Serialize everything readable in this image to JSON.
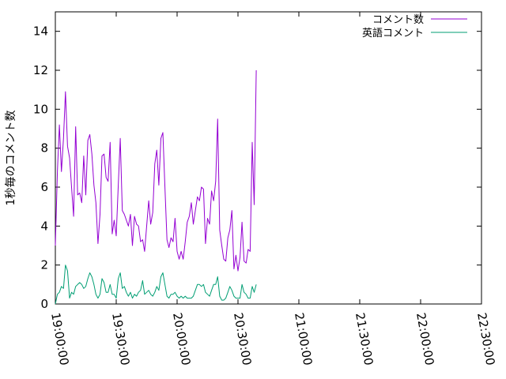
{
  "chart_data": {
    "type": "line",
    "title": "",
    "xlabel": "",
    "ylabel": "1秒毎のコメント数",
    "xlim": [
      "19:00:00",
      "22:30:00"
    ],
    "ylim": [
      0,
      15
    ],
    "x_ticks": [
      "19:00:00",
      "19:30:00",
      "20:00:00",
      "20:30:00",
      "21:00:00",
      "21:30:00",
      "22:00:00",
      "22:30:00"
    ],
    "y_ticks": [
      "0",
      "2",
      "4",
      "6",
      "8",
      "10",
      "12",
      "14"
    ],
    "grid": false,
    "legend_position": "top-right",
    "series": [
      {
        "name": "コメント数",
        "color": "#9400d3",
        "points": [
          [
            "19:00:00",
            3.0
          ],
          [
            "19:01:00",
            6.8
          ],
          [
            "19:02:00",
            9.2
          ],
          [
            "19:03:00",
            6.8
          ],
          [
            "19:04:00",
            8.5
          ],
          [
            "19:05:00",
            10.9
          ],
          [
            "19:06:00",
            8.1
          ],
          [
            "19:07:00",
            7.5
          ],
          [
            "19:08:00",
            6.0
          ],
          [
            "19:09:00",
            4.5
          ],
          [
            "19:10:00",
            9.1
          ],
          [
            "19:11:00",
            5.6
          ],
          [
            "19:12:00",
            5.7
          ],
          [
            "19:13:00",
            5.2
          ],
          [
            "19:14:00",
            7.6
          ],
          [
            "19:15:00",
            5.6
          ],
          [
            "19:16:00",
            8.4
          ],
          [
            "19:17:00",
            8.7
          ],
          [
            "19:18:00",
            7.7
          ],
          [
            "19:19:00",
            6.1
          ],
          [
            "19:20:00",
            5.2
          ],
          [
            "19:21:00",
            3.1
          ],
          [
            "19:22:00",
            4.6
          ],
          [
            "19:23:00",
            7.6
          ],
          [
            "19:24:00",
            7.7
          ],
          [
            "19:25:00",
            6.5
          ],
          [
            "19:26:00",
            6.3
          ],
          [
            "19:27:00",
            8.3
          ],
          [
            "19:28:00",
            3.6
          ],
          [
            "19:29:00",
            4.3
          ],
          [
            "19:30:00",
            3.5
          ],
          [
            "19:31:00",
            6.1
          ],
          [
            "19:32:00",
            8.5
          ],
          [
            "19:33:00",
            4.8
          ],
          [
            "19:34:00",
            4.6
          ],
          [
            "19:35:00",
            4.3
          ],
          [
            "19:36:00",
            4.0
          ],
          [
            "19:37:00",
            4.6
          ],
          [
            "19:38:00",
            3.0
          ],
          [
            "19:39:00",
            4.5
          ],
          [
            "19:40:00",
            4.1
          ],
          [
            "19:41:00",
            4.0
          ],
          [
            "19:42:00",
            3.2
          ],
          [
            "19:43:00",
            3.3
          ],
          [
            "19:44:00",
            2.7
          ],
          [
            "19:45:00",
            4.0
          ],
          [
            "19:46:00",
            5.3
          ],
          [
            "19:47:00",
            4.1
          ],
          [
            "19:48:00",
            4.7
          ],
          [
            "19:49:00",
            7.2
          ],
          [
            "19:50:00",
            7.9
          ],
          [
            "19:51:00",
            6.1
          ],
          [
            "19:52:00",
            8.5
          ],
          [
            "19:53:00",
            8.8
          ],
          [
            "19:54:00",
            6.0
          ],
          [
            "19:55:00",
            3.3
          ],
          [
            "19:56:00",
            2.9
          ],
          [
            "19:57:00",
            3.4
          ],
          [
            "19:58:00",
            3.2
          ],
          [
            "19:59:00",
            4.4
          ],
          [
            "20:00:00",
            2.7
          ],
          [
            "20:01:00",
            2.3
          ],
          [
            "20:02:00",
            2.7
          ],
          [
            "20:03:00",
            2.3
          ],
          [
            "20:04:00",
            3.2
          ],
          [
            "20:05:00",
            4.2
          ],
          [
            "20:06:00",
            4.5
          ],
          [
            "20:07:00",
            5.2
          ],
          [
            "20:08:00",
            4.1
          ],
          [
            "20:09:00",
            4.8
          ],
          [
            "20:10:00",
            5.5
          ],
          [
            "20:11:00",
            5.3
          ],
          [
            "20:12:00",
            6.0
          ],
          [
            "20:13:00",
            5.9
          ],
          [
            "20:14:00",
            3.1
          ],
          [
            "20:15:00",
            4.4
          ],
          [
            "20:16:00",
            4.1
          ],
          [
            "20:17:00",
            5.8
          ],
          [
            "20:18:00",
            5.3
          ],
          [
            "20:19:00",
            6.3
          ],
          [
            "20:20:00",
            9.5
          ],
          [
            "20:21:00",
            3.8
          ],
          [
            "20:22:00",
            3.0
          ],
          [
            "20:23:00",
            2.3
          ],
          [
            "20:24:00",
            2.2
          ],
          [
            "20:25:00",
            3.4
          ],
          [
            "20:26:00",
            3.8
          ],
          [
            "20:27:00",
            4.8
          ],
          [
            "20:28:00",
            1.8
          ],
          [
            "20:29:00",
            2.5
          ],
          [
            "20:30:00",
            1.7
          ],
          [
            "20:31:00",
            2.4
          ],
          [
            "20:32:00",
            4.2
          ],
          [
            "20:33:00",
            2.2
          ],
          [
            "20:34:00",
            2.1
          ],
          [
            "20:35:00",
            2.8
          ],
          [
            "20:36:00",
            2.7
          ],
          [
            "20:37:00",
            8.3
          ],
          [
            "20:38:00",
            5.1
          ],
          [
            "20:39:00",
            12.0
          ]
        ]
      },
      {
        "name": "英語コメント",
        "color": "#009e73",
        "points": [
          [
            "19:00:00",
            0.0
          ],
          [
            "19:01:00",
            0.5
          ],
          [
            "19:02:00",
            0.6
          ],
          [
            "19:03:00",
            0.9
          ],
          [
            "19:04:00",
            0.8
          ],
          [
            "19:05:00",
            2.0
          ],
          [
            "19:06:00",
            1.7
          ],
          [
            "19:07:00",
            0.3
          ],
          [
            "19:08:00",
            0.6
          ],
          [
            "19:09:00",
            0.5
          ],
          [
            "19:10:00",
            0.9
          ],
          [
            "19:11:00",
            1.0
          ],
          [
            "19:12:00",
            1.1
          ],
          [
            "19:13:00",
            1.0
          ],
          [
            "19:14:00",
            0.8
          ],
          [
            "19:15:00",
            0.9
          ],
          [
            "19:16:00",
            1.3
          ],
          [
            "19:17:00",
            1.6
          ],
          [
            "19:18:00",
            1.4
          ],
          [
            "19:19:00",
            1.0
          ],
          [
            "19:20:00",
            0.5
          ],
          [
            "19:21:00",
            0.3
          ],
          [
            "19:22:00",
            0.5
          ],
          [
            "19:23:00",
            1.3
          ],
          [
            "19:24:00",
            1.1
          ],
          [
            "19:25:00",
            0.6
          ],
          [
            "19:26:00",
            0.6
          ],
          [
            "19:27:00",
            1.0
          ],
          [
            "19:28:00",
            0.5
          ],
          [
            "19:29:00",
            0.5
          ],
          [
            "19:30:00",
            0.3
          ],
          [
            "19:31:00",
            1.3
          ],
          [
            "19:32:00",
            1.6
          ],
          [
            "19:33:00",
            0.8
          ],
          [
            "19:34:00",
            0.9
          ],
          [
            "19:35:00",
            0.6
          ],
          [
            "19:36:00",
            0.4
          ],
          [
            "19:37:00",
            0.6
          ],
          [
            "19:38:00",
            0.3
          ],
          [
            "19:39:00",
            0.5
          ],
          [
            "19:40:00",
            0.4
          ],
          [
            "19:41:00",
            0.6
          ],
          [
            "19:42:00",
            0.7
          ],
          [
            "19:43:00",
            1.2
          ],
          [
            "19:44:00",
            0.5
          ],
          [
            "19:45:00",
            0.6
          ],
          [
            "19:46:00",
            0.7
          ],
          [
            "19:47:00",
            0.5
          ],
          [
            "19:48:00",
            0.4
          ],
          [
            "19:49:00",
            0.6
          ],
          [
            "19:50:00",
            0.9
          ],
          [
            "19:51:00",
            0.7
          ],
          [
            "19:52:00",
            1.4
          ],
          [
            "19:53:00",
            1.6
          ],
          [
            "19:54:00",
            1.0
          ],
          [
            "19:55:00",
            0.4
          ],
          [
            "19:56:00",
            0.3
          ],
          [
            "19:57:00",
            0.5
          ],
          [
            "19:58:00",
            0.5
          ],
          [
            "19:59:00",
            0.6
          ],
          [
            "20:00:00",
            0.4
          ],
          [
            "20:01:00",
            0.3
          ],
          [
            "20:02:00",
            0.4
          ],
          [
            "20:03:00",
            0.3
          ],
          [
            "20:04:00",
            0.4
          ],
          [
            "20:05:00",
            0.3
          ],
          [
            "20:06:00",
            0.3
          ],
          [
            "20:07:00",
            0.3
          ],
          [
            "20:08:00",
            0.4
          ],
          [
            "20:09:00",
            0.7
          ],
          [
            "20:10:00",
            1.0
          ],
          [
            "20:11:00",
            1.0
          ],
          [
            "20:12:00",
            0.9
          ],
          [
            "20:13:00",
            1.0
          ],
          [
            "20:14:00",
            0.6
          ],
          [
            "20:15:00",
            0.5
          ],
          [
            "20:16:00",
            0.4
          ],
          [
            "20:17:00",
            0.7
          ],
          [
            "20:18:00",
            1.0
          ],
          [
            "20:19:00",
            1.0
          ],
          [
            "20:20:00",
            1.4
          ],
          [
            "20:21:00",
            0.4
          ],
          [
            "20:22:00",
            0.2
          ],
          [
            "20:23:00",
            0.2
          ],
          [
            "20:24:00",
            0.3
          ],
          [
            "20:25:00",
            0.6
          ],
          [
            "20:26:00",
            0.9
          ],
          [
            "20:27:00",
            0.7
          ],
          [
            "20:28:00",
            0.4
          ],
          [
            "20:29:00",
            0.3
          ],
          [
            "20:30:00",
            0.3
          ],
          [
            "20:31:00",
            0.3
          ],
          [
            "20:32:00",
            1.0
          ],
          [
            "20:33:00",
            0.6
          ],
          [
            "20:34:00",
            0.5
          ],
          [
            "20:35:00",
            0.3
          ],
          [
            "20:36:00",
            0.3
          ],
          [
            "20:37:00",
            0.9
          ],
          [
            "20:38:00",
            0.6
          ],
          [
            "20:39:00",
            1.0
          ]
        ]
      }
    ]
  }
}
